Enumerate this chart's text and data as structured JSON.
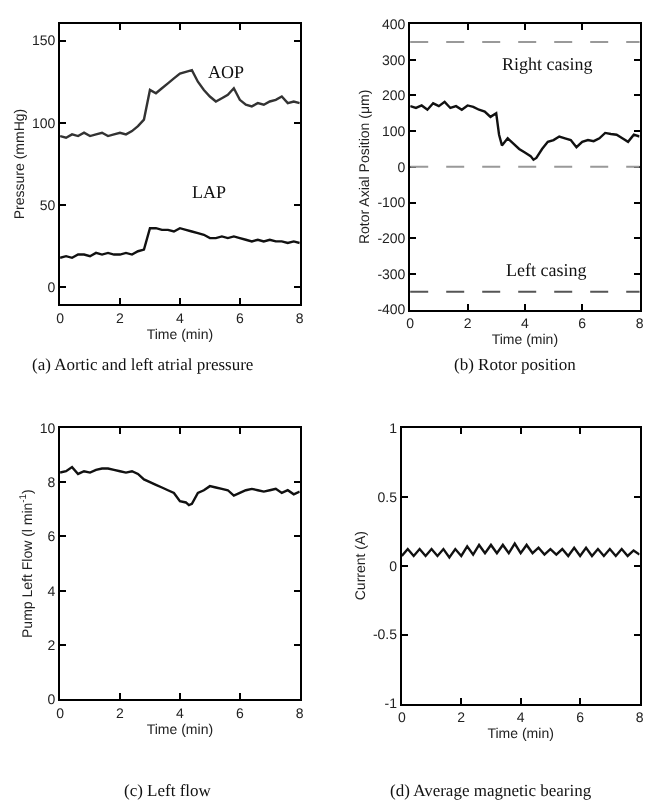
{
  "chart_data": [
    {
      "type": "line",
      "title": "(a) Aortic and left atrial pressure",
      "xlabel": "Time (min)",
      "ylabel": "Pressure (mmHg)",
      "xlim": [
        0,
        8
      ],
      "ylim": [
        -10,
        160
      ],
      "xticks": [
        0,
        2,
        4,
        6,
        8
      ],
      "yticks": [
        0,
        50,
        100,
        150
      ],
      "x": [
        0,
        0.2,
        0.4,
        0.6,
        0.8,
        1.0,
        1.2,
        1.4,
        1.6,
        1.8,
        2.0,
        2.2,
        2.4,
        2.6,
        2.8,
        3.0,
        3.2,
        3.4,
        3.6,
        3.8,
        4.0,
        4.2,
        4.4,
        4.6,
        4.8,
        5.0,
        5.2,
        5.4,
        5.6,
        5.8,
        6.0,
        6.2,
        6.4,
        6.6,
        6.8,
        7.0,
        7.2,
        7.4,
        7.6,
        7.8,
        8.0
      ],
      "series": [
        {
          "color": "#333333",
          "values": [
            92,
            91,
            93,
            92,
            94,
            92,
            93,
            94,
            92,
            93,
            94,
            93,
            95,
            98,
            102,
            120,
            118,
            121,
            124,
            127,
            130,
            131,
            132,
            125,
            120,
            116,
            113,
            115,
            117,
            121,
            114,
            111,
            110,
            112,
            111,
            113,
            114,
            116,
            112,
            113,
            112
          ]
        },
        {
          "color": "#111111",
          "values": [
            18,
            19,
            18,
            20,
            20,
            19,
            21,
            20,
            21,
            20,
            20,
            21,
            20,
            22,
            23,
            36,
            36,
            35,
            35,
            34,
            36,
            35,
            34,
            33,
            32,
            30,
            30,
            31,
            30,
            31,
            30,
            29,
            28,
            29,
            28,
            29,
            28,
            28,
            27,
            28,
            27
          ]
        }
      ],
      "annotations": [
        "AOP",
        "LAP"
      ]
    },
    {
      "type": "line",
      "title": "(b) Rotor position",
      "xlabel": "Time (min)",
      "ylabel": "Rotor Axial Position (μm)",
      "xlim": [
        0,
        8
      ],
      "ylim": [
        -400,
        400
      ],
      "xticks": [
        0,
        2,
        4,
        6,
        8
      ],
      "yticks": [
        -400,
        -300,
        -200,
        -100,
        0,
        100,
        200,
        300,
        400
      ],
      "x": [
        0,
        0.2,
        0.4,
        0.6,
        0.8,
        1.0,
        1.2,
        1.4,
        1.6,
        1.8,
        2.0,
        2.2,
        2.4,
        2.6,
        2.8,
        3.0,
        3.1,
        3.2,
        3.4,
        3.6,
        3.8,
        4.0,
        4.2,
        4.3,
        4.4,
        4.6,
        4.8,
        5.0,
        5.2,
        5.4,
        5.6,
        5.8,
        6.0,
        6.2,
        6.4,
        6.6,
        6.8,
        7.0,
        7.2,
        7.4,
        7.6,
        7.8,
        8.0
      ],
      "series": [
        {
          "color": "#111111",
          "values": [
            170,
            165,
            172,
            160,
            178,
            170,
            182,
            165,
            170,
            160,
            172,
            168,
            160,
            155,
            140,
            150,
            90,
            60,
            80,
            65,
            50,
            40,
            30,
            20,
            25,
            50,
            70,
            75,
            85,
            80,
            75,
            55,
            70,
            75,
            72,
            80,
            95,
            92,
            90,
            80,
            70,
            90,
            85
          ]
        }
      ],
      "ref_lines": [
        {
          "axis": "y",
          "value": 350,
          "label": "Right casing",
          "color": "#999999",
          "line_style": "dashed"
        },
        {
          "axis": "y",
          "value": 0,
          "color": "#999999",
          "line_style": "dashed"
        },
        {
          "axis": "y",
          "value": -350,
          "label": "Left casing",
          "color": "#555555",
          "line_style": "dashed"
        }
      ]
    },
    {
      "type": "line",
      "title": "(c) Left flow",
      "xlabel": "Time (min)",
      "ylabel": "Pump Left Flow (l min$^{-1}$)",
      "xlim": [
        0,
        8
      ],
      "ylim": [
        0,
        10
      ],
      "xticks": [
        0,
        2,
        4,
        6,
        8
      ],
      "yticks": [
        0,
        2,
        4,
        6,
        8,
        10
      ],
      "x": [
        0,
        0.2,
        0.4,
        0.6,
        0.8,
        1.0,
        1.2,
        1.4,
        1.6,
        1.8,
        2.0,
        2.2,
        2.4,
        2.6,
        2.8,
        3.0,
        3.2,
        3.4,
        3.6,
        3.8,
        4.0,
        4.2,
        4.3,
        4.4,
        4.6,
        4.8,
        5.0,
        5.2,
        5.4,
        5.6,
        5.8,
        6.0,
        6.2,
        6.4,
        6.6,
        6.8,
        7.0,
        7.2,
        7.4,
        7.6,
        7.8,
        8.0
      ],
      "series": [
        {
          "color": "#111111",
          "values": [
            8.35,
            8.4,
            8.55,
            8.3,
            8.4,
            8.35,
            8.45,
            8.5,
            8.5,
            8.45,
            8.4,
            8.35,
            8.4,
            8.3,
            8.1,
            8.0,
            7.9,
            7.8,
            7.7,
            7.6,
            7.3,
            7.25,
            7.15,
            7.2,
            7.6,
            7.7,
            7.85,
            7.8,
            7.75,
            7.7,
            7.5,
            7.6,
            7.7,
            7.75,
            7.7,
            7.65,
            7.7,
            7.75,
            7.6,
            7.7,
            7.55,
            7.65
          ]
        }
      ]
    },
    {
      "type": "line",
      "title": "(d) Average magnetic bearing",
      "xlabel": "Time (min)",
      "ylabel": "Current (A)",
      "xlim": [
        0,
        8
      ],
      "ylim": [
        -1,
        1
      ],
      "xticks": [
        0,
        2,
        4,
        6,
        8
      ],
      "yticks": [
        -1,
        -0.5,
        0,
        0.5,
        1
      ],
      "x": [
        0,
        0.2,
        0.4,
        0.6,
        0.8,
        1.0,
        1.2,
        1.4,
        1.6,
        1.8,
        2.0,
        2.2,
        2.4,
        2.6,
        2.8,
        3.0,
        3.2,
        3.4,
        3.6,
        3.8,
        4.0,
        4.2,
        4.4,
        4.6,
        4.8,
        5.0,
        5.2,
        5.4,
        5.6,
        5.8,
        6.0,
        6.2,
        6.4,
        6.6,
        6.8,
        7.0,
        7.2,
        7.4,
        7.6,
        7.8,
        8.0
      ],
      "series": [
        {
          "color": "#111111",
          "values": [
            0.07,
            0.12,
            0.07,
            0.12,
            0.07,
            0.12,
            0.07,
            0.12,
            0.06,
            0.12,
            0.07,
            0.14,
            0.08,
            0.15,
            0.09,
            0.15,
            0.09,
            0.15,
            0.09,
            0.16,
            0.09,
            0.15,
            0.09,
            0.13,
            0.08,
            0.12,
            0.08,
            0.12,
            0.07,
            0.13,
            0.07,
            0.13,
            0.07,
            0.12,
            0.07,
            0.12,
            0.07,
            0.12,
            0.07,
            0.11,
            0.08
          ]
        }
      ]
    }
  ]
}
